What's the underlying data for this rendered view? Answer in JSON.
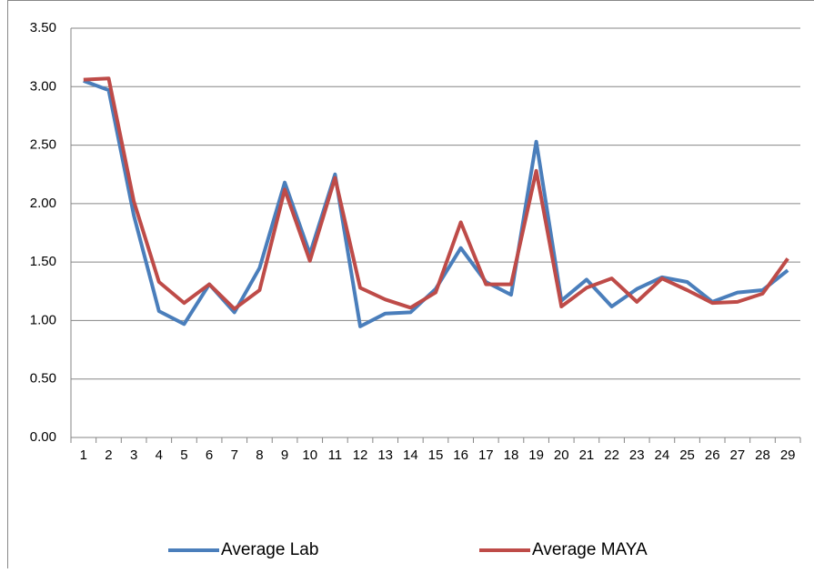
{
  "chart_data": {
    "type": "line",
    "categories": [
      "1",
      "2",
      "3",
      "4",
      "5",
      "6",
      "7",
      "8",
      "9",
      "10",
      "11",
      "12",
      "13",
      "14",
      "15",
      "16",
      "17",
      "18",
      "19",
      "20",
      "21",
      "22",
      "23",
      "24",
      "25",
      "26",
      "27",
      "28",
      "29"
    ],
    "series": [
      {
        "name": "Average Lab",
        "color": "#4a7ebb",
        "values": [
          3.05,
          2.97,
          1.9,
          1.08,
          0.97,
          1.31,
          1.07,
          1.45,
          2.18,
          1.57,
          2.25,
          0.95,
          1.06,
          1.07,
          1.27,
          1.62,
          1.33,
          1.22,
          2.53,
          1.17,
          1.35,
          1.12,
          1.27,
          1.37,
          1.33,
          1.16,
          1.24,
          1.26,
          1.43
        ]
      },
      {
        "name": "Average MAYA",
        "color": "#be4b48",
        "values": [
          3.06,
          3.07,
          2.02,
          1.33,
          1.15,
          1.31,
          1.1,
          1.26,
          2.12,
          1.51,
          2.22,
          1.28,
          1.18,
          1.11,
          1.24,
          1.84,
          1.31,
          1.31,
          2.28,
          1.12,
          1.28,
          1.36,
          1.16,
          1.36,
          1.26,
          1.15,
          1.16,
          1.23,
          1.53
        ]
      }
    ],
    "ylim": [
      0,
      3.5
    ],
    "yticks": [
      {
        "value": 0,
        "label": "0.00"
      },
      {
        "value": 0.5,
        "label": "0.50"
      },
      {
        "value": 1,
        "label": "1.00"
      },
      {
        "value": 1.5,
        "label": "1.50"
      },
      {
        "value": 2,
        "label": "2.00"
      },
      {
        "value": 2.5,
        "label": "2.50"
      },
      {
        "value": 3,
        "label": "3.00"
      },
      {
        "value": 3.5,
        "label": "3.50"
      }
    ],
    "grid": true,
    "legend": "bottom"
  }
}
